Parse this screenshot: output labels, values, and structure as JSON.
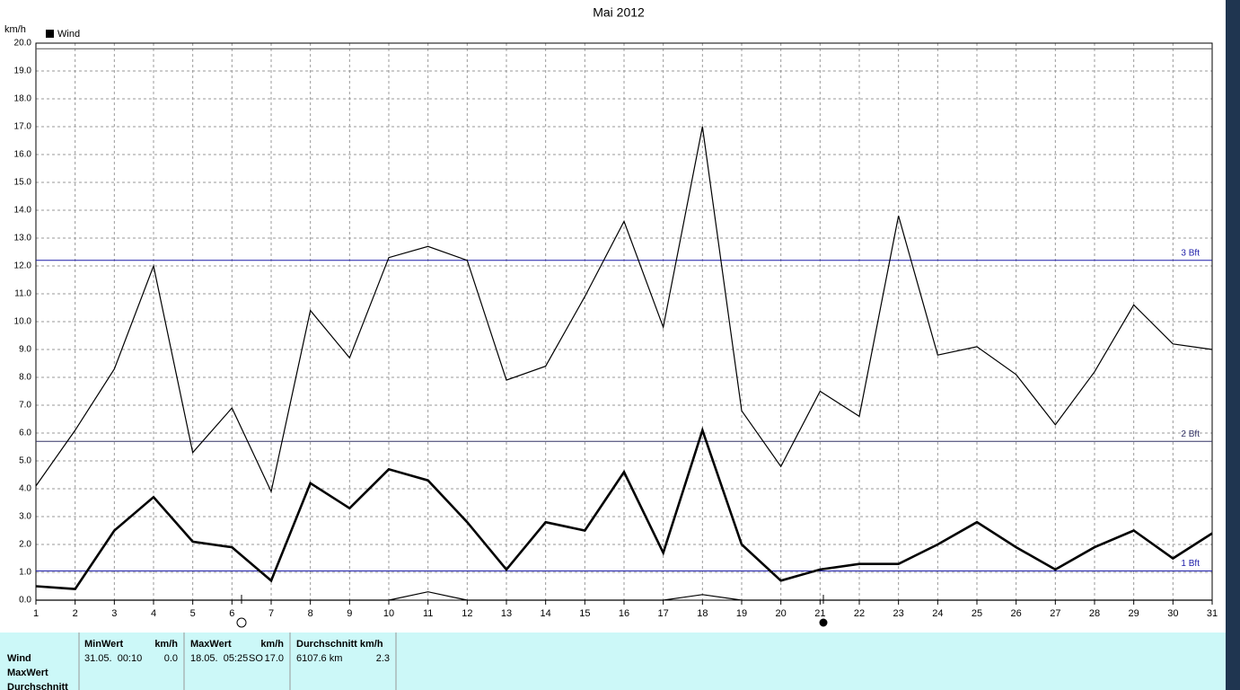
{
  "chart_data": {
    "type": "line",
    "title": "Mai 2012",
    "y_label": "km/h",
    "legend": {
      "label": "Wind",
      "color": "#000000"
    },
    "x": [
      1,
      2,
      3,
      4,
      5,
      6,
      7,
      8,
      9,
      10,
      11,
      12,
      13,
      14,
      15,
      16,
      17,
      18,
      19,
      20,
      21,
      22,
      23,
      24,
      25,
      26,
      27,
      28,
      29,
      30,
      31
    ],
    "xlim": [
      1,
      31
    ],
    "series": [
      {
        "color": "#000000",
        "width": 1.2,
        "values": [
          4.1,
          6.1,
          8.3,
          12.0,
          5.3,
          6.9,
          3.9,
          10.4,
          8.7,
          12.3,
          12.7,
          12.2,
          7.9,
          8.4,
          10.9,
          13.6,
          9.8,
          17.0,
          6.8,
          4.8,
          7.5,
          6.6,
          13.8,
          8.8,
          9.1,
          8.1,
          6.3,
          8.2,
          10.6,
          9.2,
          9.0
        ]
      },
      {
        "color": "#000000",
        "width": 2.6,
        "values": [
          0.5,
          0.4,
          2.5,
          3.7,
          2.1,
          1.9,
          0.7,
          4.2,
          3.3,
          4.7,
          4.3,
          2.8,
          1.1,
          2.8,
          2.5,
          4.6,
          1.7,
          6.1,
          2.0,
          0.7,
          1.1,
          1.3,
          1.3,
          2.0,
          2.8,
          1.9,
          1.1,
          1.9,
          2.5,
          1.5,
          2.4
        ]
      },
      {
        "color": "#000000",
        "width": 1.2,
        "values": [
          0,
          0,
          0,
          0,
          0,
          0,
          0,
          0,
          0,
          0,
          0.3,
          0,
          0,
          0,
          0,
          0,
          0,
          0.2,
          0,
          0,
          0,
          0,
          0,
          0,
          0,
          0,
          0,
          0,
          0,
          0,
          0
        ]
      }
    ],
    "ylim": [
      0,
      20
    ],
    "yticks": [
      {
        "value": 0,
        "label": "0.0"
      },
      {
        "value": 1,
        "label": "1.0"
      },
      {
        "value": 2,
        "label": "2.0"
      },
      {
        "value": 3,
        "label": "3.0"
      },
      {
        "value": 4,
        "label": "4.0"
      },
      {
        "value": 5,
        "label": "5.0"
      },
      {
        "value": 6,
        "label": "6.0"
      },
      {
        "value": 7,
        "label": "7.0"
      },
      {
        "value": 8,
        "label": "8.0"
      },
      {
        "value": 9,
        "label": "9.0"
      },
      {
        "value": 10,
        "label": "10.0"
      },
      {
        "value": 11,
        "label": "11.0"
      },
      {
        "value": 12,
        "label": "12.0"
      },
      {
        "value": 13,
        "label": "13.0"
      },
      {
        "value": 14,
        "label": "14.0"
      },
      {
        "value": 15,
        "label": "15.0"
      },
      {
        "value": 16,
        "label": "16.0"
      },
      {
        "value": 17,
        "label": "17.0"
      },
      {
        "value": 18,
        "label": "18.0"
      },
      {
        "value": 19,
        "label": "19.0"
      },
      {
        "value": 20,
        "label": "20.0"
      }
    ],
    "reference_lines": [
      {
        "value": 19.8,
        "color": "#555555"
      },
      {
        "value": 12.2,
        "label": "3 Bft",
        "color": "#1c1ca8"
      },
      {
        "value": 5.7,
        "label": "2 Bft",
        "color": "#333366"
      },
      {
        "value": 1.05,
        "label": "1 Bft",
        "color": "#1c1ca8"
      }
    ],
    "grid": true
  },
  "table": {
    "row_labels": [
      "Wind",
      "MaxWert",
      "Durchschnitt"
    ],
    "header": [
      "MinWert",
      "km/h",
      "MaxWert",
      "km/h",
      "Durchschnitt km/h"
    ],
    "row": [
      "31.05.  00:10",
      "0.0",
      "18.05.  05:25",
      "SO",
      "17.0",
      "6107.6 km",
      "2.3"
    ]
  }
}
